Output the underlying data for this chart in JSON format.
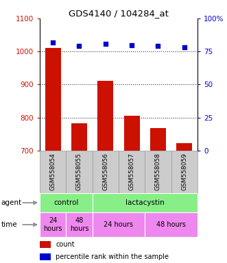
{
  "title": "GDS4140 / 104284_at",
  "samples": [
    "GSM558054",
    "GSM558055",
    "GSM558056",
    "GSM558057",
    "GSM558058",
    "GSM558059"
  ],
  "counts": [
    1010,
    783,
    912,
    805,
    768,
    722
  ],
  "percentile_ranks": [
    82,
    79,
    81,
    80,
    79,
    78
  ],
  "ylim_left": [
    700,
    1100
  ],
  "ylim_right": [
    0,
    100
  ],
  "yticks_left": [
    700,
    800,
    900,
    1000,
    1100
  ],
  "yticks_right": [
    0,
    25,
    50,
    75,
    100
  ],
  "ytick_right_labels": [
    "0",
    "25",
    "50",
    "75",
    "100%"
  ],
  "bar_color": "#cc1100",
  "dot_color": "#0000cc",
  "agent_data": [
    {
      "label": "control",
      "start": 0,
      "end": 2,
      "color": "#88ee88"
    },
    {
      "label": "lactacystin",
      "start": 2,
      "end": 6,
      "color": "#88ee88"
    }
  ],
  "time_data": [
    {
      "label": "24\nhours",
      "start": 0,
      "end": 1,
      "color": "#ee88ee"
    },
    {
      "label": "48\nhours",
      "start": 1,
      "end": 2,
      "color": "#ee88ee"
    },
    {
      "label": "24 hours",
      "start": 2,
      "end": 4,
      "color": "#ee88ee"
    },
    {
      "label": "48 hours",
      "start": 4,
      "end": 6,
      "color": "#ee88ee"
    }
  ],
  "bar_color_legend": "#cc1100",
  "dot_color_legend": "#0000cc",
  "legend_count_label": "count",
  "legend_pct_label": "percentile rank within the sample",
  "left_axis_color": "#cc1100",
  "right_axis_color": "#0000cc",
  "gsm_box_color": "#cccccc",
  "gsm_box_edge": "#999999",
  "grid_linestyle": ":",
  "grid_color": "#333333",
  "agent_label": "agent",
  "time_label": "time",
  "arrow_color": "#888888"
}
